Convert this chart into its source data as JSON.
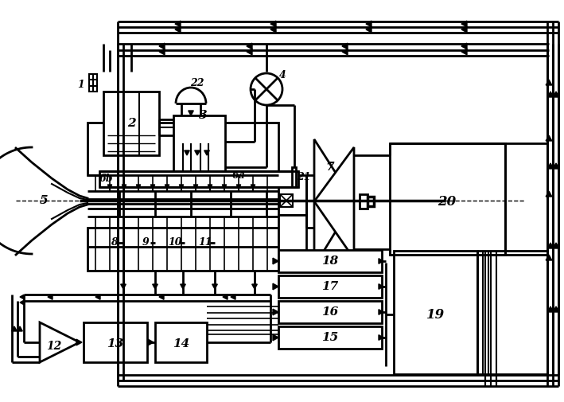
{
  "bg_color": "#ffffff",
  "lc": "#000000",
  "fig_width": 7.09,
  "fig_height": 5.05,
  "dpi": 100
}
